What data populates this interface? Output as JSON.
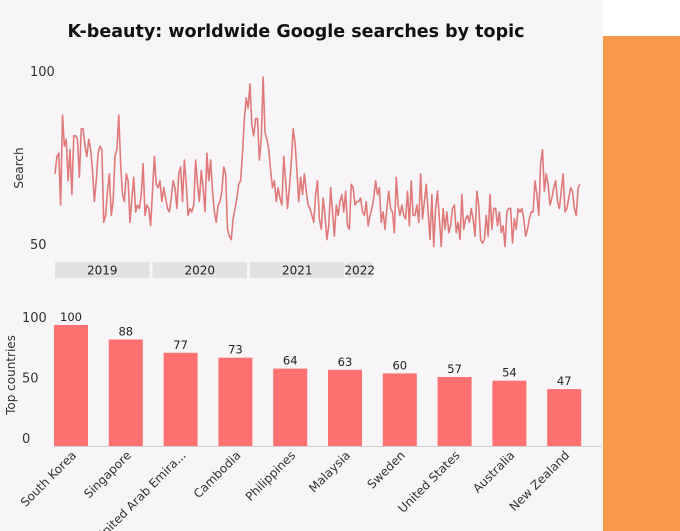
{
  "title": "K-beauty: worldwide Google searches by topic",
  "colors": {
    "panel_bg": "#f8f5f8",
    "accent": "#f8984a",
    "line": "#e07a7a",
    "bar": "#ff7070",
    "year_band": "#e3e1e3",
    "axis_text": "#333333"
  },
  "chart_data": [
    {
      "type": "line",
      "ylabel": "Search",
      "ylim": [
        50,
        100
      ],
      "y_ticks": [
        50,
        100
      ],
      "years": [
        {
          "label": "2019",
          "weeks": 52
        },
        {
          "label": "2020",
          "weeks": 52
        },
        {
          "label": "2021",
          "weeks": 52
        },
        {
          "label": "2022",
          "weeks": 13
        }
      ],
      "series": [
        {
          "values": [
            72,
            77,
            78,
            63,
            89,
            80,
            82,
            70,
            79,
            66,
            83,
            83,
            82,
            71,
            85,
            85,
            80,
            77,
            82,
            79,
            73,
            64,
            70,
            78,
            80,
            79,
            58,
            60,
            67,
            72,
            60,
            64,
            77,
            79,
            89,
            75,
            66,
            64,
            72,
            70,
            58,
            65,
            71,
            61,
            63,
            62,
            66,
            75,
            60,
            63,
            62,
            57,
            67,
            77,
            69,
            68,
            70,
            64,
            68,
            65,
            62,
            61,
            65,
            70,
            68,
            62,
            72,
            74,
            64,
            76,
            69,
            60,
            62,
            61,
            63,
            76,
            69,
            64,
            73,
            68,
            61,
            78,
            70,
            76,
            67,
            61,
            58,
            63,
            64,
            67,
            74,
            72,
            56,
            54,
            53,
            59,
            62,
            65,
            69,
            70,
            78,
            88,
            94,
            91,
            98,
            86,
            83,
            88,
            88,
            76,
            82,
            100,
            84,
            82,
            79,
            73,
            68,
            70,
            64,
            68,
            65,
            63,
            77,
            70,
            62,
            68,
            75,
            85,
            81,
            73,
            64,
            71,
            66,
            72,
            67,
            63,
            62,
            60,
            58,
            66,
            70,
            59,
            56,
            65,
            60,
            53,
            57,
            68,
            61,
            54,
            63,
            60,
            64,
            66,
            61,
            67,
            57,
            56,
            69,
            68,
            63,
            64,
            64,
            65,
            61,
            60,
            64,
            57,
            60,
            62,
            65,
            70,
            66,
            68,
            58,
            61,
            56,
            62,
            67,
            62,
            61,
            55,
            71,
            63,
            60,
            63,
            60,
            59,
            67,
            57,
            70,
            60,
            60,
            63,
            58,
            72,
            59,
            64,
            69,
            61,
            53,
            66,
            51,
            62,
            67,
            59,
            51,
            62,
            56,
            61,
            55,
            57,
            62,
            63,
            55,
            58,
            53,
            66,
            56,
            59,
            60,
            58,
            62,
            59,
            54,
            67,
            63,
            53,
            52,
            53,
            60,
            54,
            66,
            56,
            62,
            62,
            57,
            61,
            55,
            57,
            51,
            61,
            62,
            62,
            52,
            59,
            56,
            62,
            61,
            62,
            59,
            54,
            56,
            59,
            61,
            61,
            70,
            66,
            60,
            75,
            79,
            67,
            72,
            69,
            63,
            65,
            68,
            70,
            64,
            62,
            67,
            72,
            61,
            62,
            65,
            68,
            67,
            62,
            60,
            68,
            69
          ]
        }
      ]
    },
    {
      "type": "bar",
      "ylabel": "Top countries",
      "ylim": [
        0,
        100
      ],
      "y_ticks": [
        0,
        50,
        100
      ],
      "categories": [
        "South Korea",
        "Singapore",
        "United Arab Emira...",
        "Cambodia",
        "Philippines",
        "Malaysia",
        "Sweden",
        "United States",
        "Australia",
        "New Zealand"
      ],
      "values": [
        100,
        88,
        77,
        73,
        64,
        63,
        60,
        57,
        54,
        47
      ]
    }
  ]
}
